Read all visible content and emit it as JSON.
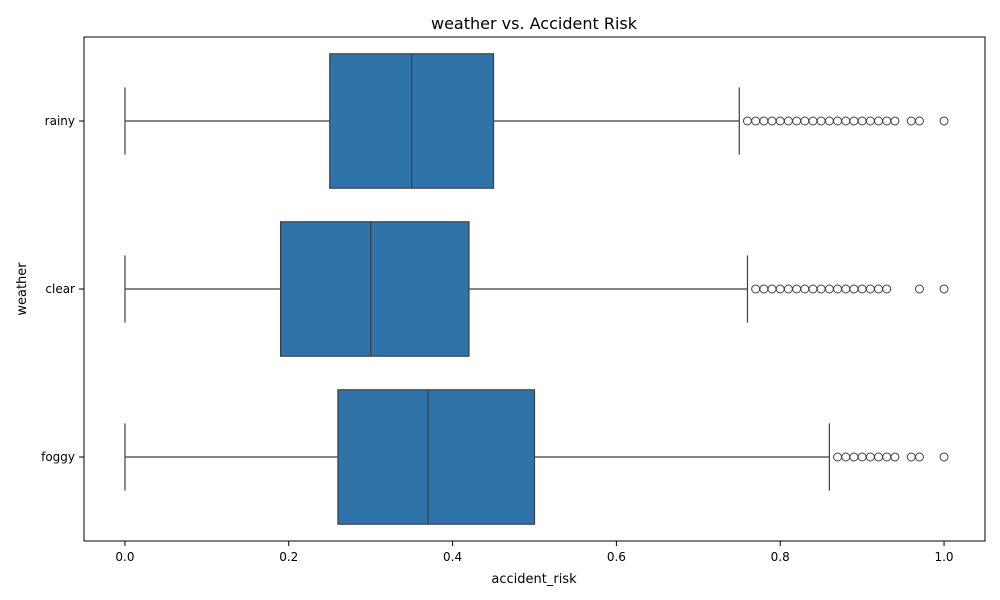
{
  "chart_data": {
    "type": "boxplot",
    "orientation": "horizontal",
    "title": "weather vs. Accident Risk",
    "xlabel": "accident_risk",
    "ylabel": "weather",
    "xlim": [
      -0.05,
      1.05
    ],
    "xticks": [
      0.0,
      0.2,
      0.4,
      0.6,
      0.8,
      1.0
    ],
    "xtick_labels": [
      "0.0",
      "0.2",
      "0.4",
      "0.6",
      "0.8",
      "1.0"
    ],
    "grid": false,
    "box_color": "#2f73ab",
    "line_color": "#3f3f3f",
    "categories": [
      "rainy",
      "clear",
      "foggy"
    ],
    "boxes": [
      {
        "category": "rainy",
        "whisker_low": 0.0,
        "q1": 0.25,
        "median": 0.35,
        "q3": 0.45,
        "whisker_high": 0.75,
        "fliers": [
          0.76,
          0.77,
          0.78,
          0.79,
          0.8,
          0.81,
          0.82,
          0.83,
          0.84,
          0.85,
          0.86,
          0.87,
          0.88,
          0.89,
          0.9,
          0.91,
          0.92,
          0.93,
          0.94,
          0.96,
          0.97,
          1.0
        ]
      },
      {
        "category": "clear",
        "whisker_low": 0.0,
        "q1": 0.19,
        "median": 0.3,
        "q3": 0.42,
        "whisker_high": 0.76,
        "fliers": [
          0.77,
          0.78,
          0.79,
          0.8,
          0.81,
          0.82,
          0.83,
          0.84,
          0.85,
          0.86,
          0.87,
          0.88,
          0.89,
          0.9,
          0.91,
          0.92,
          0.93,
          0.97,
          1.0
        ]
      },
      {
        "category": "foggy",
        "whisker_low": 0.0,
        "q1": 0.26,
        "median": 0.37,
        "q3": 0.5,
        "whisker_high": 0.86,
        "fliers": [
          0.87,
          0.88,
          0.89,
          0.9,
          0.91,
          0.92,
          0.93,
          0.94,
          0.96,
          0.97,
          1.0
        ]
      }
    ]
  }
}
